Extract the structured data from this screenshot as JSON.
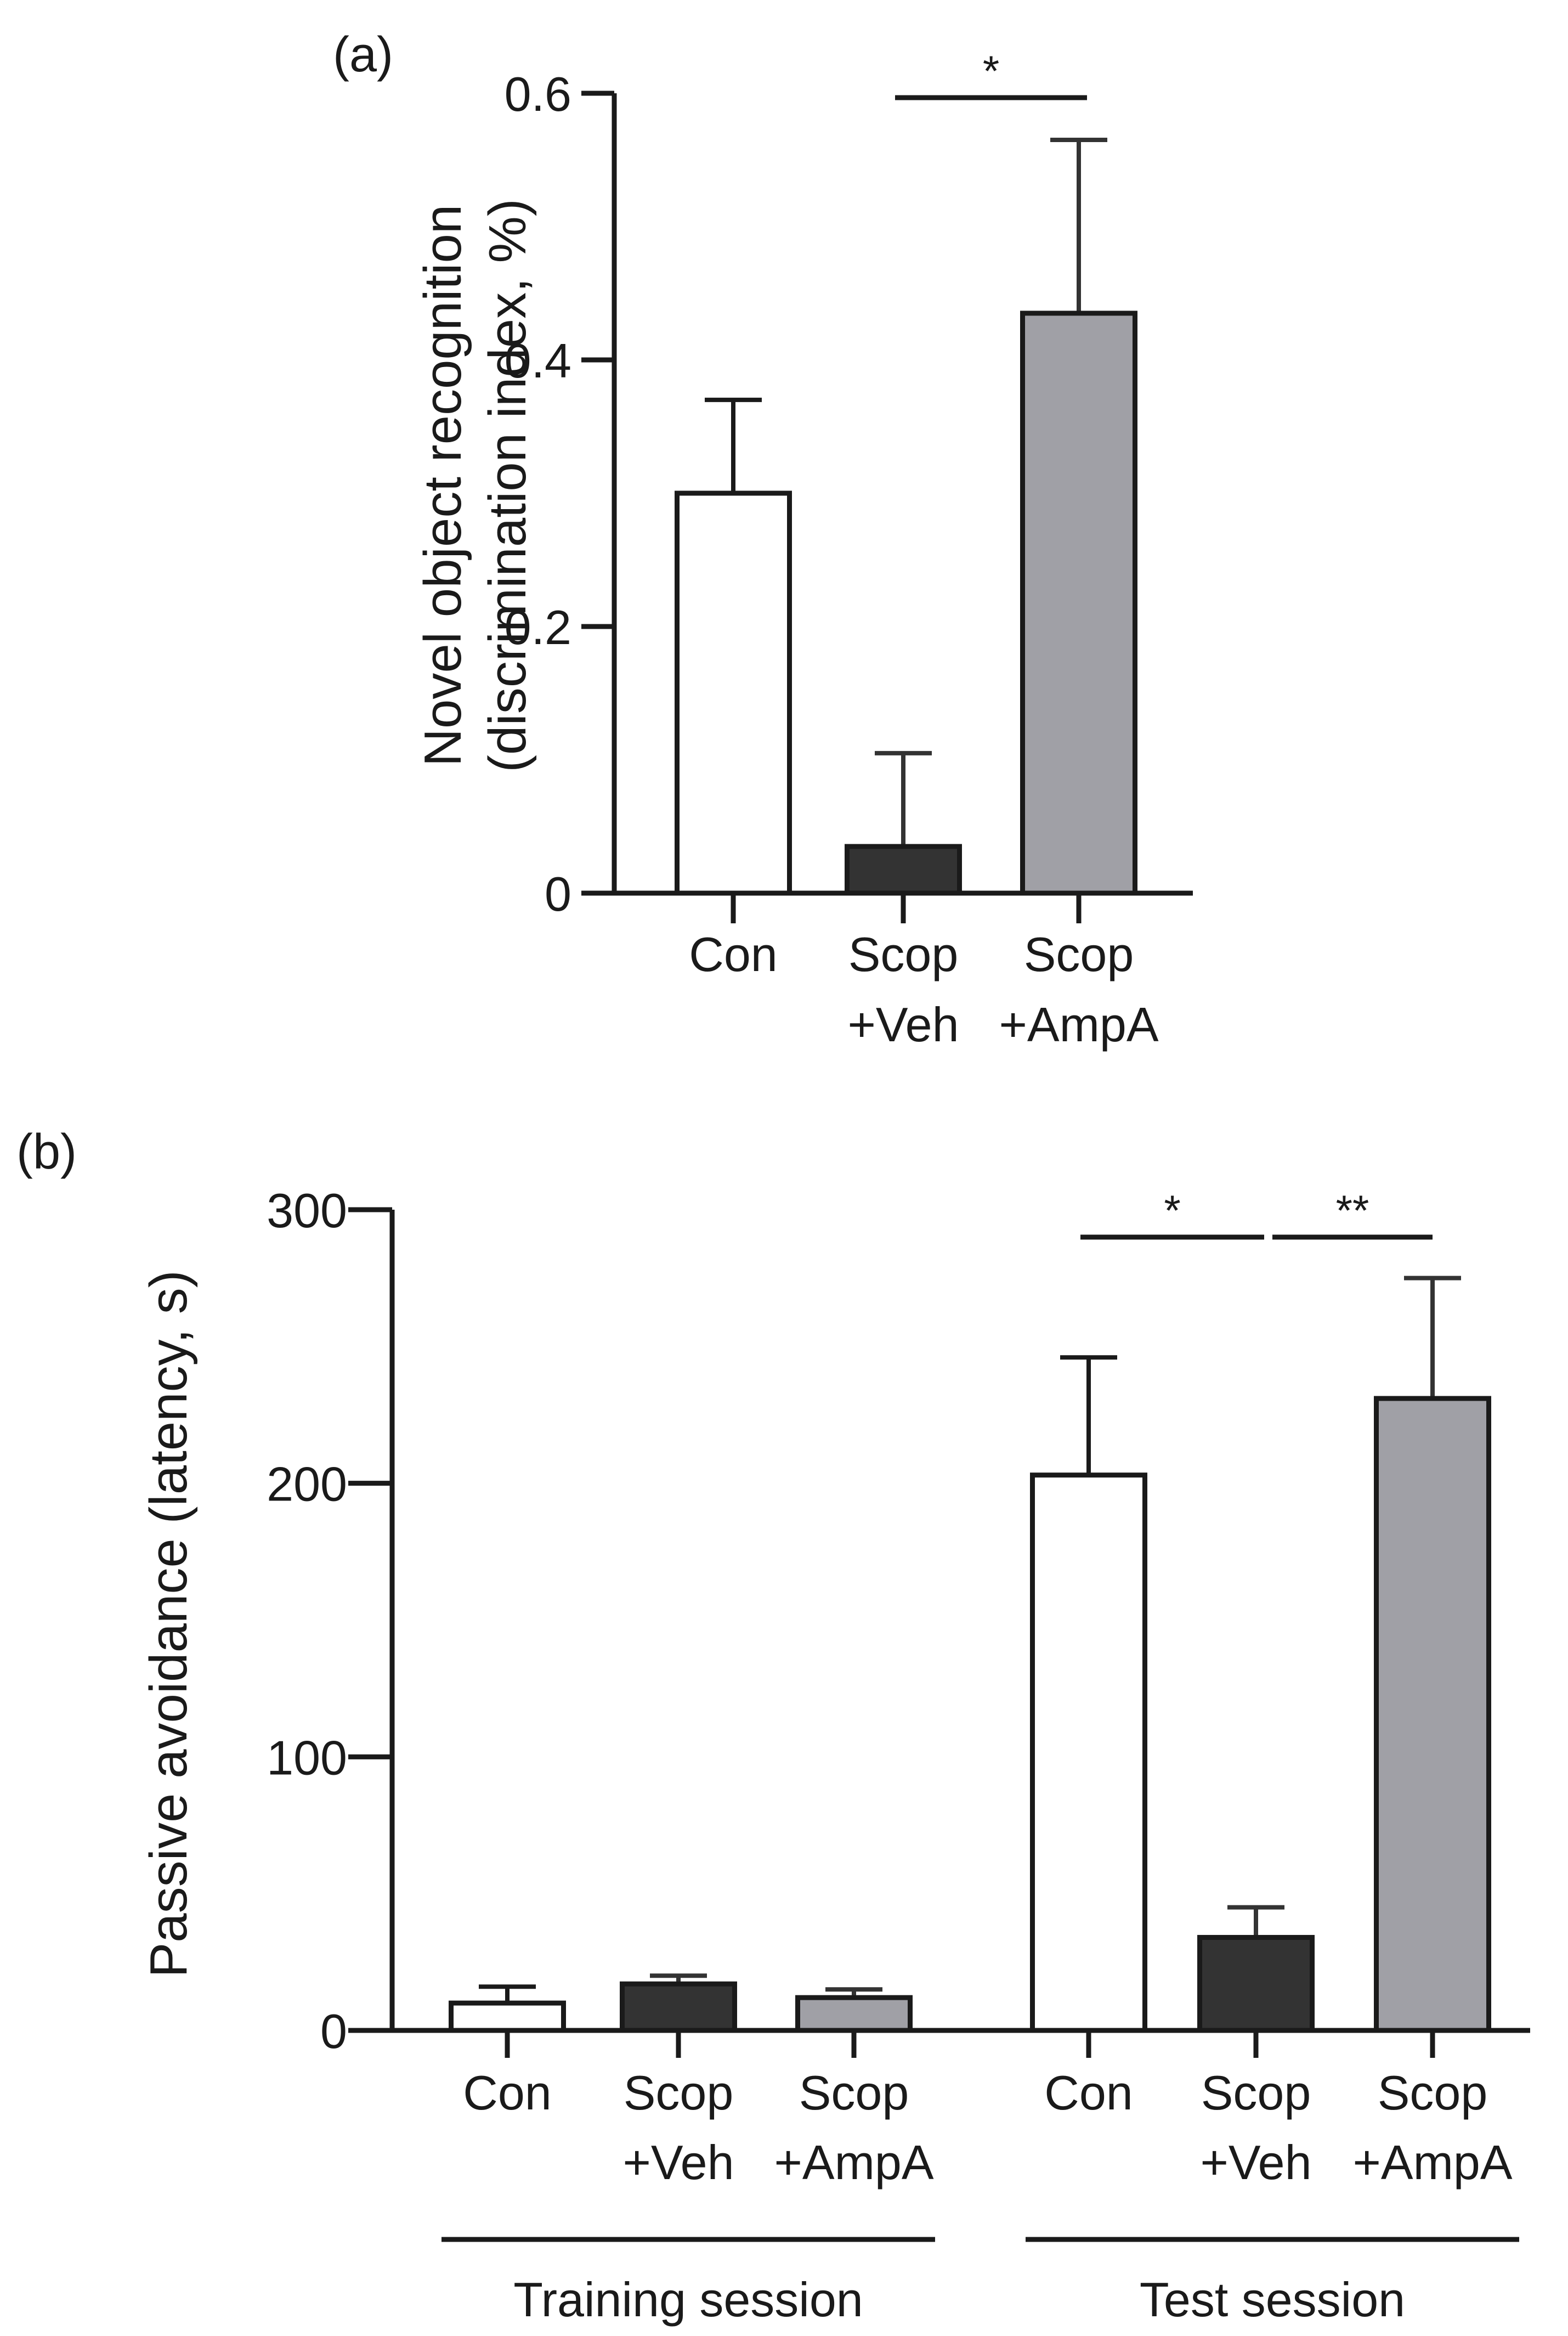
{
  "chart_data": [
    {
      "type": "bar",
      "panel_label": "(a)",
      "ylabel_line1": "Novel object recognition",
      "ylabel_line2": "(discrimination index, %)",
      "ylim": [
        0,
        0.6
      ],
      "yticks": [
        0,
        0.2,
        0.4,
        0.6
      ],
      "ytick_labels": [
        "0",
        "0.2",
        "0.4",
        "0.6"
      ],
      "categories": [
        {
          "line1": "Con",
          "line2": ""
        },
        {
          "line1": "Scop",
          "line2": "+Veh"
        },
        {
          "line1": "Scop",
          "line2": "+AmpA"
        }
      ],
      "values": [
        0.3,
        0.035,
        0.435
      ],
      "errors": [
        0.07,
        0.07,
        0.13
      ],
      "colors": [
        "#ffffff",
        "#333333",
        "#a0a0a6"
      ],
      "significance": [
        {
          "from": 1,
          "to": 2,
          "label": "*"
        }
      ]
    },
    {
      "type": "bar",
      "panel_label": "(b)",
      "ylabel": "Passive avoidance (latency, s)",
      "ylim": [
        0,
        300
      ],
      "yticks": [
        0,
        100,
        200,
        300
      ],
      "ytick_labels": [
        "0",
        "100",
        "200",
        "300"
      ],
      "groups": [
        {
          "name": "Training session",
          "categories": [
            {
              "line1": "Con",
              "line2": ""
            },
            {
              "line1": "Scop",
              "line2": "+Veh"
            },
            {
              "line1": "Scop",
              "line2": "+AmpA"
            }
          ],
          "values": [
            10,
            17,
            12
          ],
          "errors": [
            6,
            3,
            3
          ]
        },
        {
          "name": "Test session",
          "categories": [
            {
              "line1": "Con",
              "line2": ""
            },
            {
              "line1": "Scop",
              "line2": "+Veh"
            },
            {
              "line1": "Scop",
              "line2": "+AmpA"
            }
          ],
          "values": [
            203,
            34,
            231
          ],
          "errors": [
            43,
            11,
            44
          ]
        }
      ],
      "colors": [
        "#ffffff",
        "#333333",
        "#a0a0a6"
      ],
      "significance": [
        {
          "group": 1,
          "from": 0,
          "to": 1,
          "label": "*"
        },
        {
          "group": 1,
          "from": 1,
          "to": 2,
          "label": "**"
        }
      ]
    }
  ]
}
